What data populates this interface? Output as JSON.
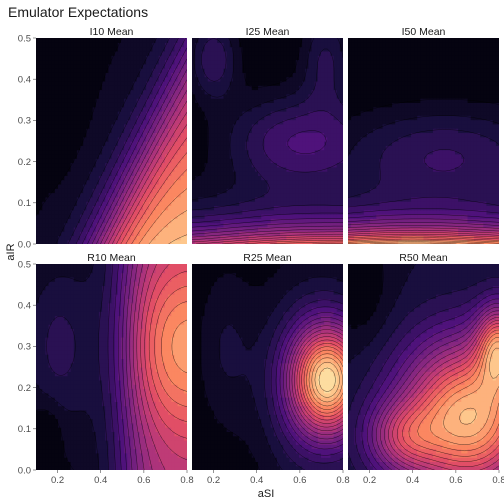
{
  "chart_data": {
    "type": "heatmap",
    "title": "Emulator Expectations",
    "xlabel": "aSI",
    "ylabel": "aIR",
    "xlim": [
      0.1,
      0.8
    ],
    "ylim": [
      0.0,
      0.5
    ],
    "xticks": [
      "0.2",
      "0.4",
      "0.6",
      "0.8"
    ],
    "yticks": [
      "0.0",
      "0.1",
      "0.2",
      "0.3",
      "0.4",
      "0.5"
    ],
    "colormap": [
      "#000004",
      "#1c1044",
      "#4f127b",
      "#812581",
      "#b5367a",
      "#e55064",
      "#fb8761",
      "#fec287",
      "#fcfdbf"
    ],
    "panels": [
      {
        "label": "I10 Mean",
        "row": 0,
        "col": 0,
        "max": 0.88
      },
      {
        "label": "I25 Mean",
        "row": 0,
        "col": 1,
        "max": 0.74
      },
      {
        "label": "I50 Mean",
        "row": 0,
        "col": 2,
        "max": 0.9
      },
      {
        "label": "R10 Mean",
        "row": 1,
        "col": 0,
        "max": 0.8
      },
      {
        "label": "R25 Mean",
        "row": 1,
        "col": 1,
        "max": 0.95
      },
      {
        "label": "R50 Mean",
        "row": 1,
        "col": 2,
        "max": 0.9
      }
    ]
  }
}
